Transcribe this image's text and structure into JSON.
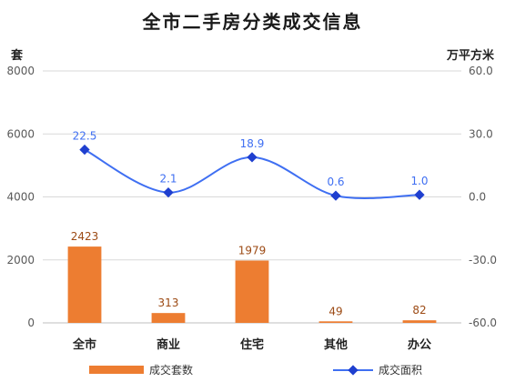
{
  "title": "全市二手房分类成交信息",
  "left_unit": "套",
  "right_unit": "万平方米",
  "colors": {
    "bars": "#ed7d31",
    "bar_labels": "#9c4a14",
    "line": "#3f6ff2",
    "markers": "#1f3fcf",
    "line_labels": "#3f6ff2",
    "axis_text": "#595959",
    "gridline": "#d9d9d9"
  },
  "chart_data": {
    "type": "bar",
    "categories": [
      "全市",
      "商业",
      "住宅",
      "其他",
      "办公"
    ],
    "series": [
      {
        "name": "成交套数",
        "type": "bar",
        "axis": "left",
        "values": [
          2423,
          313,
          1979,
          49,
          82
        ]
      },
      {
        "name": "成交面积",
        "type": "line",
        "axis": "right",
        "values": [
          22.5,
          2.1,
          18.9,
          0.6,
          1.0
        ]
      }
    ],
    "data_labels": {
      "bar": [
        "2423",
        "313",
        "1979",
        "49",
        "82"
      ],
      "line": [
        "22.5",
        "2.1",
        "18.9",
        "0.6",
        "1.0"
      ]
    },
    "left_axis": {
      "ylim": [
        0,
        8000
      ],
      "ticks": [
        "0",
        "2000",
        "4000",
        "6000",
        "8000"
      ]
    },
    "right_axis": {
      "ylim": [
        -60,
        60
      ],
      "ticks": [
        "-60.0",
        "-30.0",
        "0.0",
        "30.0",
        "60.0"
      ]
    },
    "grid": true,
    "legend_position": "bottom"
  }
}
